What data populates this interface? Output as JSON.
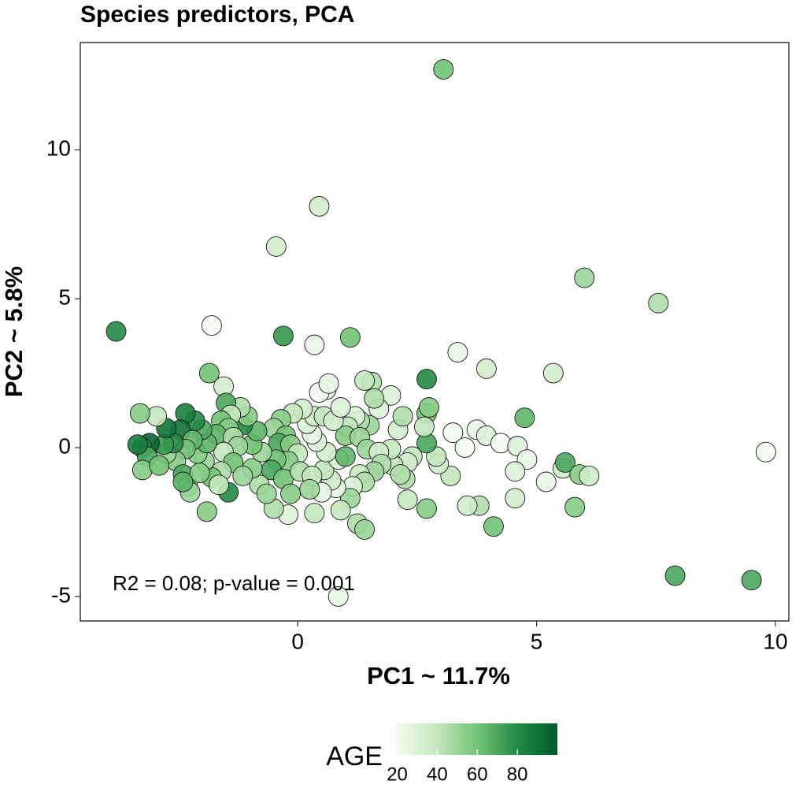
{
  "chart_data": {
    "type": "scatter",
    "title": "Species predictors, PCA",
    "xlabel": "PC1 ~ 11.7%",
    "ylabel": "PC2 ~ 5.8%",
    "annotation": "R2 = 0.08; p-value = 0.001",
    "xlim": [
      -4.55,
      10.28
    ],
    "ylim": [
      -5.82,
      13.6
    ],
    "xticks": [
      0,
      5,
      10
    ],
    "yticks": [
      -5,
      0,
      5,
      10
    ],
    "colorbar": {
      "label": "AGE",
      "lim": [
        19,
        100
      ],
      "ticks": [
        20,
        40,
        60,
        80
      ],
      "colors": [
        "#f7fcf5",
        "#c7e9c0",
        "#74c476",
        "#238b45",
        "#00592a"
      ]
    },
    "x": [
      3.05,
      0.45,
      -0.45,
      6.0,
      7.55,
      -3.8,
      -1.8,
      -0.3,
      0.35,
      1.1,
      3.35,
      3.95,
      5.35,
      2.7,
      9.8,
      7.9,
      9.5,
      0.85,
      -1.85,
      4.75,
      3.25,
      3.5,
      3.75,
      3.95,
      4.25,
      4.6,
      4.8,
      4.55,
      4.55,
      5.2,
      5.55,
      5.6,
      5.9,
      6.1,
      5.8,
      4.1,
      3.8,
      3.55,
      3.2,
      2.95,
      2.9,
      2.7,
      2.7,
      2.75,
      2.65,
      2.4,
      2.3,
      2.25,
      2.3,
      2.7,
      2.0,
      2.15,
      1.95,
      2.1,
      2.2,
      1.95,
      1.7,
      1.55,
      1.4,
      1.6,
      1.5,
      1.3,
      1.2,
      1.05,
      1.0,
      1.3,
      1.45,
      1.7,
      1.75,
      1.6,
      1.3,
      1.4,
      1.15,
      1.1,
      1.25,
      1.4,
      0.9,
      0.8,
      0.7,
      0.5,
      0.55,
      0.85,
      1.0,
      0.6,
      0.4,
      0.3,
      0.2,
      0.35,
      0.55,
      0.75,
      0.6,
      0.45,
      0.65,
      0.9,
      0.1,
      -0.1,
      -0.35,
      -0.5,
      -0.25,
      -0.4,
      -0.15,
      0.0,
      -0.2,
      -0.45,
      -0.55,
      -0.3,
      0.05,
      0.3,
      0.25,
      0.35,
      -0.2,
      -0.5,
      -0.15,
      -0.8,
      -0.95,
      -0.75,
      -0.95,
      -0.85,
      -1.15,
      -1.05,
      -1.2,
      -1.55,
      -1.5,
      -1.4,
      -1.6,
      -1.45,
      -1.7,
      -1.35,
      -1.25,
      -1.55,
      -1.35,
      -1.15,
      -1.6,
      -1.8,
      -1.45,
      -1.65,
      -1.9,
      -1.95,
      -2.1,
      -1.9,
      -2.0,
      -2.15,
      -2.35,
      -2.45,
      -2.2,
      -2.35,
      -2.55,
      -2.4,
      -2.3,
      -2.75,
      -2.6,
      -2.8,
      -2.75,
      -2.95,
      -3.1,
      -3.25,
      -3.15,
      -3.35,
      -3.3,
      -3.25,
      -2.9,
      -2.05,
      -2.25,
      -2.4,
      -0.65
    ],
    "y": [
      12.7,
      8.1,
      6.75,
      5.7,
      4.85,
      3.9,
      4.1,
      3.75,
      3.45,
      3.7,
      3.2,
      2.65,
      2.5,
      2.3,
      -0.15,
      -4.3,
      -4.45,
      -5.0,
      2.5,
      1.0,
      0.5,
      0.0,
      0.6,
      0.4,
      0.15,
      0.05,
      -0.4,
      -0.8,
      -1.7,
      -1.15,
      -0.7,
      -0.5,
      -0.9,
      -0.95,
      -2.0,
      -2.65,
      -1.95,
      -1.95,
      -0.95,
      -0.55,
      -0.3,
      0.15,
      1.15,
      1.35,
      0.7,
      -0.3,
      -0.5,
      -1.05,
      -1.75,
      -2.05,
      -0.6,
      -0.9,
      -0.05,
      0.6,
      1.05,
      1.75,
      1.3,
      2.2,
      2.25,
      1.65,
      0.75,
      0.9,
      1.05,
      0.7,
      0.4,
      0.35,
      -0.05,
      -0.15,
      -0.55,
      -0.8,
      -0.9,
      -1.15,
      -1.3,
      -1.7,
      -2.55,
      -2.75,
      -2.1,
      -1.35,
      -1.1,
      -1.5,
      -0.75,
      -0.4,
      -0.3,
      -0.15,
      0.2,
      0.45,
      0.8,
      1.05,
      1.05,
      0.9,
      1.95,
      1.85,
      2.15,
      1.35,
      1.3,
      1.15,
      0.95,
      0.65,
      0.4,
      0.15,
      0.1,
      -0.2,
      -0.45,
      -0.4,
      -0.75,
      -1.05,
      -0.8,
      -0.95,
      -1.4,
      -2.2,
      -2.25,
      -2.05,
      -1.55,
      -1.25,
      -0.7,
      -0.15,
      0.1,
      0.55,
      0.75,
      1.05,
      1.35,
      2.05,
      1.5,
      1.1,
      0.9,
      0.65,
      0.45,
      0.35,
      0.05,
      -0.15,
      -0.5,
      -0.95,
      -0.8,
      -1.0,
      -1.5,
      -1.25,
      -2.15,
      -0.45,
      -0.2,
      0.15,
      0.6,
      0.9,
      1.15,
      0.6,
      0.25,
      -0.05,
      -0.45,
      -0.9,
      -1.3,
      -0.2,
      0.15,
      0.1,
      0.65,
      1.05,
      0.15,
      0.0,
      -0.3,
      0.1,
      1.15,
      -0.75,
      -0.6,
      -0.85,
      -1.5,
      -1.15,
      -1.55
    ],
    "age": [
      60,
      35,
      35,
      50,
      45,
      80,
      20,
      75,
      25,
      60,
      25,
      35,
      35,
      80,
      20,
      70,
      70,
      25,
      60,
      65,
      20,
      20,
      25,
      30,
      20,
      30,
      25,
      30,
      35,
      25,
      35,
      70,
      55,
      35,
      55,
      60,
      45,
      35,
      40,
      35,
      40,
      70,
      60,
      55,
      40,
      40,
      35,
      45,
      40,
      55,
      40,
      45,
      40,
      35,
      45,
      30,
      30,
      45,
      40,
      45,
      50,
      45,
      30,
      40,
      55,
      50,
      50,
      35,
      45,
      50,
      40,
      45,
      30,
      50,
      45,
      50,
      40,
      25,
      35,
      25,
      40,
      30,
      65,
      35,
      30,
      25,
      30,
      35,
      40,
      35,
      25,
      20,
      25,
      30,
      35,
      40,
      55,
      50,
      60,
      70,
      55,
      40,
      55,
      60,
      70,
      60,
      45,
      40,
      50,
      40,
      30,
      45,
      55,
      45,
      55,
      50,
      60,
      65,
      80,
      55,
      45,
      35,
      70,
      40,
      60,
      55,
      65,
      45,
      50,
      40,
      60,
      50,
      45,
      60,
      80,
      40,
      55,
      50,
      55,
      65,
      70,
      80,
      85,
      90,
      65,
      60,
      55,
      70,
      65,
      50,
      80,
      75,
      90,
      40,
      95,
      85,
      70,
      85,
      55,
      55,
      60,
      55,
      50,
      65,
      50
    ]
  }
}
